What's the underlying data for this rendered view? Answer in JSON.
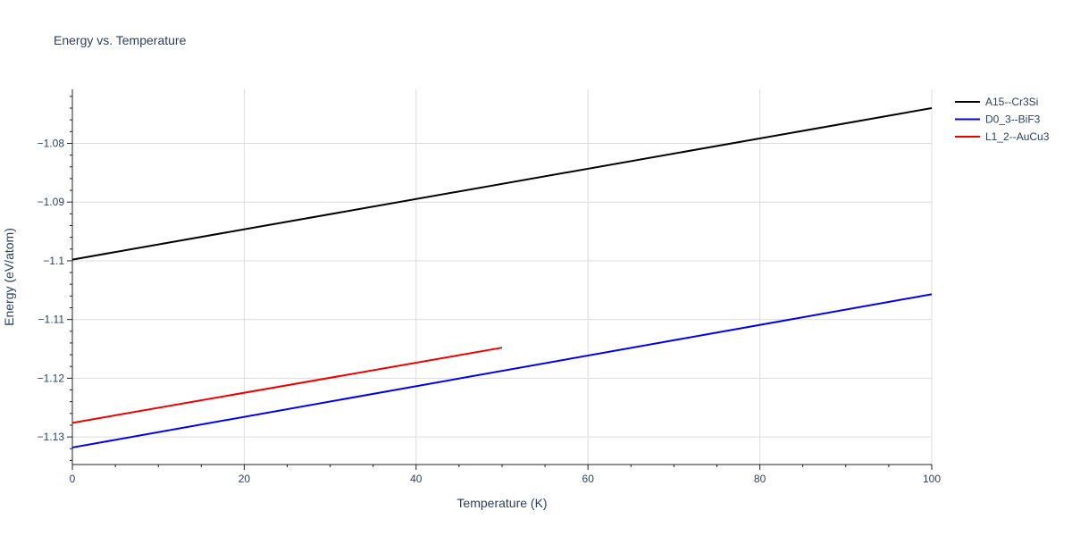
{
  "chart_data": {
    "type": "line",
    "title": "Energy vs. Temperature",
    "xlabel": "Temperature (K)",
    "ylabel": "Energy (eV/atom)",
    "xlim": [
      0,
      100
    ],
    "ylim": [
      -1.1347,
      -1.0708
    ],
    "x_ticks": [
      0,
      20,
      40,
      60,
      80,
      100
    ],
    "x_tick_labels": [
      "0",
      "20",
      "40",
      "60",
      "80",
      "100"
    ],
    "y_ticks": [
      -1.13,
      -1.12,
      -1.11,
      -1.1,
      -1.09,
      -1.08
    ],
    "y_tick_labels": [
      "−1.13",
      "−1.12",
      "−1.11",
      "−1.1",
      "−1.09",
      "−1.08"
    ],
    "grid": true,
    "legend_position": "top-right",
    "series": [
      {
        "name": "A15--Cr3Si",
        "color": "#000000",
        "x": [
          0,
          100
        ],
        "y": [
          -1.0998,
          -1.074
        ]
      },
      {
        "name": "D0_3--BiF3",
        "color": "#0000ee",
        "x": [
          0,
          100
        ],
        "y": [
          -1.1318,
          -1.1057
        ]
      },
      {
        "name": "L1_2--AuCu3",
        "color": "#ee0000",
        "x": [
          0,
          50
        ],
        "y": [
          -1.1276,
          -1.1148
        ]
      }
    ]
  }
}
